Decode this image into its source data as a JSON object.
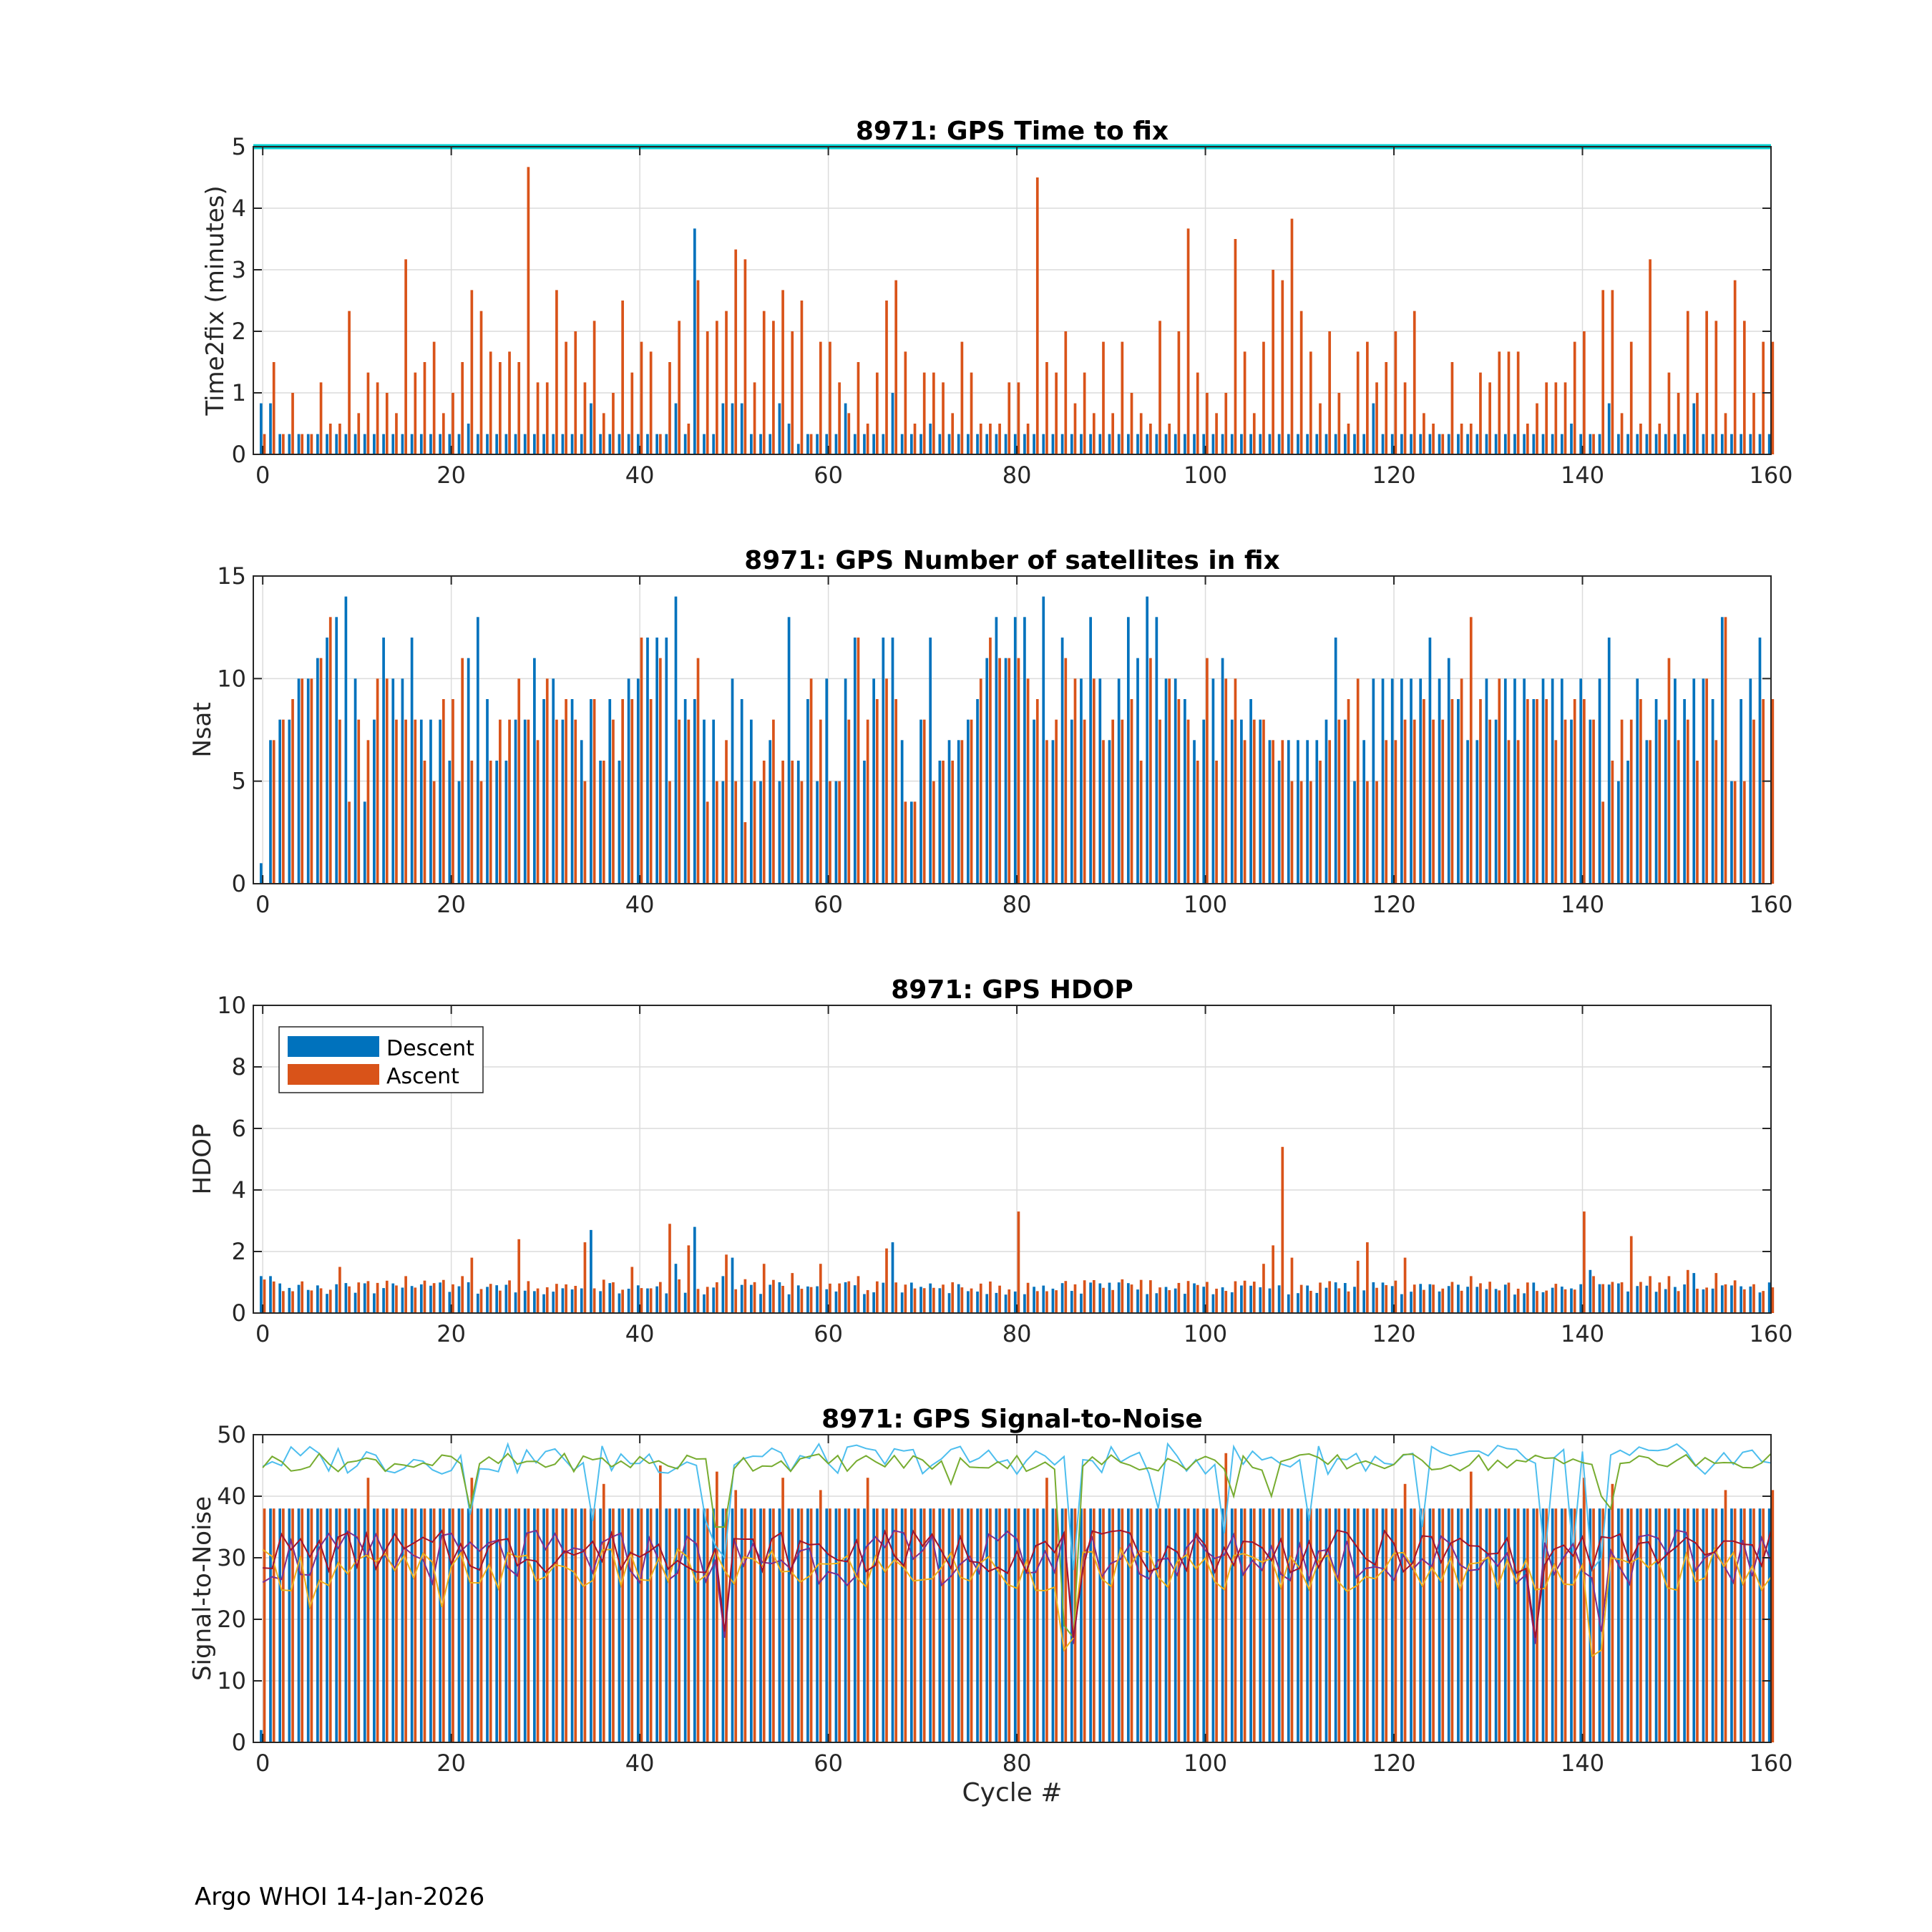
{
  "footer": "Argo WHOI 14-Jan-2026",
  "colors": {
    "descent": "#0072BD",
    "ascent": "#D95319",
    "limit": "#00D0D0",
    "snr": [
      "#4DBEEE",
      "#77AC30",
      "#7E2F8E",
      "#EDB120",
      "#A2142F"
    ]
  },
  "chart_data": [
    {
      "type": "bar",
      "title": "8971: GPS Time to fix",
      "xlabel": "",
      "ylabel": "Time2fix (minutes)",
      "xlim": [
        -1,
        160
      ],
      "ylim": [
        0,
        5
      ],
      "xticks": [
        "0",
        "20",
        "40",
        "60",
        "80",
        "100",
        "120",
        "140",
        "160"
      ],
      "yticks": [
        "0",
        "1",
        "2",
        "3",
        "4",
        "5"
      ],
      "grid": true,
      "limit_line": 5,
      "descent_base": 0.33,
      "ascent_base": 0.33,
      "descent_overrides": {
        "0": 0.83,
        "1": 0.83,
        "22": 0.5,
        "35": 0.83,
        "44": 0.83,
        "46": 3.67,
        "49": 0.83,
        "50": 0.83,
        "51": 0.83,
        "55": 0.83,
        "56": 0.5,
        "57": 0.17,
        "62": 0.83,
        "67": 1.0,
        "71": 0.5,
        "118": 0.83,
        "139": 0.5,
        "143": 0.83,
        "152": 0.83
      },
      "ascent_overrides": {
        "1": 1.5,
        "3": 1.0,
        "6": 1.17,
        "7": 0.5,
        "8": 0.5,
        "9": 2.33,
        "10": 0.67,
        "11": 1.33,
        "12": 1.17,
        "13": 1.0,
        "14": 0.67,
        "15": 3.17,
        "16": 1.33,
        "17": 1.5,
        "18": 1.83,
        "19": 0.67,
        "20": 1.0,
        "21": 1.5,
        "22": 2.67,
        "23": 2.33,
        "24": 1.67,
        "25": 1.5,
        "26": 1.67,
        "27": 1.5,
        "28": 4.67,
        "29": 1.17,
        "30": 1.17,
        "31": 2.67,
        "32": 1.83,
        "33": 2.0,
        "34": 1.17,
        "35": 2.17,
        "36": 0.67,
        "37": 1.0,
        "38": 2.5,
        "39": 1.33,
        "40": 1.83,
        "41": 1.67,
        "42": 0.33,
        "43": 1.5,
        "44": 2.17,
        "45": 0.5,
        "46": 2.83,
        "47": 2.0,
        "48": 2.17,
        "49": 2.33,
        "50": 3.33,
        "51": 3.17,
        "52": 1.17,
        "53": 2.33,
        "54": 2.17,
        "55": 2.67,
        "56": 2.0,
        "57": 2.5,
        "58": 0.33,
        "59": 1.83,
        "60": 1.83,
        "61": 1.17,
        "62": 0.67,
        "63": 1.5,
        "64": 0.5,
        "65": 1.33,
        "66": 2.5,
        "67": 2.83,
        "68": 1.67,
        "69": 0.5,
        "70": 1.33,
        "71": 1.33,
        "72": 1.17,
        "73": 0.67,
        "74": 1.83,
        "75": 1.33,
        "76": 0.5,
        "77": 0.5,
        "78": 0.5,
        "79": 1.17,
        "80": 1.17,
        "81": 0.5,
        "82": 4.5,
        "83": 1.5,
        "84": 1.33,
        "85": 2.0,
        "86": 0.83,
        "87": 1.33,
        "88": 0.67,
        "89": 1.83,
        "90": 0.67,
        "91": 1.83,
        "92": 1.0,
        "93": 0.67,
        "94": 0.5,
        "95": 2.17,
        "96": 0.5,
        "97": 2.0,
        "98": 3.67,
        "99": 1.33,
        "100": 1.0,
        "101": 0.67,
        "102": 1.0,
        "103": 3.5,
        "104": 1.67,
        "105": 0.67,
        "106": 1.83,
        "107": 3.0,
        "108": 2.83,
        "109": 3.83,
        "110": 2.33,
        "111": 1.67,
        "112": 0.83,
        "113": 2.0,
        "114": 1.0,
        "115": 0.5,
        "116": 1.67,
        "117": 1.83,
        "118": 1.17,
        "119": 1.5,
        "120": 2.0,
        "121": 1.17,
        "122": 2.33,
        "123": 0.67,
        "124": 0.5,
        "125": 0.33,
        "126": 1.5,
        "127": 0.5,
        "128": 0.5,
        "129": 1.33,
        "130": 1.17,
        "131": 1.67,
        "132": 1.67,
        "133": 1.67,
        "134": 0.5,
        "135": 0.83,
        "136": 1.17,
        "137": 1.17,
        "138": 1.17,
        "139": 1.83,
        "140": 2.0,
        "141": 0.33,
        "142": 2.67,
        "143": 2.67,
        "144": 0.67,
        "145": 1.83,
        "146": 0.5,
        "147": 3.17,
        "148": 0.5,
        "149": 1.33,
        "150": 1.0,
        "151": 2.33,
        "152": 1.0,
        "153": 2.33,
        "154": 2.17,
        "155": 0.67,
        "156": 2.83,
        "157": 2.17,
        "158": 1.0,
        "159": 1.83,
        "160": 1.83
      }
    },
    {
      "type": "bar",
      "title": "8971: GPS Number of satellites in fix",
      "xlabel": "",
      "ylabel": "Nsat",
      "xlim": [
        -1,
        160
      ],
      "ylim": [
        0,
        15
      ],
      "xticks": [
        "0",
        "20",
        "40",
        "60",
        "80",
        "100",
        "120",
        "140",
        "160"
      ],
      "yticks": [
        "0",
        "5",
        "10",
        "15"
      ],
      "grid": true,
      "descent": [
        1,
        7,
        8,
        8,
        10,
        10,
        11,
        12,
        13,
        14,
        10,
        4,
        8,
        12,
        10,
        10,
        12,
        8,
        8,
        8,
        6,
        5,
        11,
        13,
        9,
        6,
        6,
        8,
        8,
        11,
        9,
        10,
        8,
        9,
        7,
        9,
        6,
        9,
        6,
        10,
        10,
        12,
        12,
        12,
        14,
        9,
        9,
        8,
        8,
        5,
        10,
        9,
        8,
        5,
        7,
        5,
        13,
        6,
        9,
        5,
        10,
        5,
        10,
        12,
        6,
        10,
        12,
        12,
        7,
        4,
        8,
        12,
        6,
        7,
        7,
        8,
        9,
        11,
        13,
        11,
        13,
        13,
        8,
        14,
        7,
        12,
        8,
        10,
        13,
        10,
        7,
        10,
        13,
        11,
        14,
        13,
        10,
        10,
        9,
        7,
        8,
        10,
        11,
        8,
        8,
        9,
        8,
        7,
        6,
        7,
        7,
        7,
        7,
        8,
        12,
        8,
        5,
        7,
        10,
        10,
        10,
        10,
        10,
        10,
        12,
        10,
        11,
        9,
        7,
        7,
        10,
        8,
        10,
        10,
        10,
        9,
        10,
        10,
        10,
        8,
        10,
        8,
        10,
        12,
        5,
        6,
        10,
        7,
        9,
        8,
        10,
        9,
        10,
        10,
        9,
        13,
        5,
        9,
        10,
        12
      ],
      "ascent": [
        0,
        7,
        8,
        9,
        10,
        10,
        11,
        13,
        8,
        4,
        8,
        7,
        10,
        10,
        8,
        8,
        8,
        6,
        5,
        9,
        9,
        11,
        6,
        5,
        6,
        8,
        8,
        10,
        8,
        7,
        10,
        8,
        9,
        8,
        5,
        9,
        6,
        8,
        9,
        9,
        12,
        9,
        11,
        5,
        8,
        8,
        11,
        4,
        5,
        7,
        5,
        3,
        5,
        6,
        8,
        6,
        6,
        5,
        10,
        8,
        5,
        5,
        8,
        12,
        8,
        9,
        10,
        9,
        4,
        4,
        8,
        5,
        6,
        6,
        7,
        8,
        10,
        12,
        11,
        11,
        11,
        10,
        9,
        7,
        8,
        11,
        10,
        8,
        10,
        7,
        8,
        8,
        9,
        6,
        11,
        8,
        10,
        9,
        8,
        6,
        11,
        6,
        10,
        10,
        7,
        8,
        8,
        7,
        7,
        5,
        5,
        5,
        6,
        7,
        8,
        9,
        10,
        5,
        5,
        7,
        7,
        8,
        8,
        9,
        8,
        8,
        9,
        10,
        13,
        9,
        8,
        10,
        7,
        7,
        9,
        9,
        9,
        7,
        8,
        9,
        9,
        8,
        4,
        6,
        8,
        8,
        9,
        7,
        8,
        11,
        7,
        8,
        6,
        10,
        7,
        13,
        5,
        5,
        8,
        9,
        9
      ]
    },
    {
      "type": "bar",
      "title": "8971: GPS HDOP",
      "xlabel": "",
      "ylabel": "HDOP",
      "xlim": [
        -1,
        160
      ],
      "ylim": [
        0,
        10
      ],
      "xticks": [
        "0",
        "20",
        "40",
        "60",
        "80",
        "100",
        "120",
        "140",
        "160"
      ],
      "yticks": [
        "0",
        "2",
        "4",
        "6",
        "8",
        "10"
      ],
      "grid": true,
      "legend": {
        "position": "top-left",
        "entries": [
          "Descent",
          "Ascent"
        ]
      },
      "descent_base": 0.8,
      "ascent_base": 0.9,
      "descent_overrides": {
        "0": 1.2,
        "1": 1.2,
        "22": 1.0,
        "35": 2.7,
        "40": 0.9,
        "44": 1.6,
        "46": 2.8,
        "49": 1.2,
        "50": 1.8,
        "55": 1.0,
        "61": 0.7,
        "62": 1.0,
        "67": 2.3,
        "80": 0.7,
        "107": 0.8,
        "108": 0.9,
        "118": 1.0,
        "139": 0.8,
        "141": 1.4,
        "152": 1.3
      },
      "ascent_overrides": {
        "8": 1.5,
        "15": 1.2,
        "21": 1.2,
        "22": 1.8,
        "27": 2.4,
        "34": 2.3,
        "37": 1.0,
        "39": 1.5,
        "43": 2.9,
        "45": 2.2,
        "48": 1.0,
        "49": 1.9,
        "51": 1.1,
        "53": 1.6,
        "56": 1.3,
        "59": 1.6,
        "63": 1.2,
        "66": 2.1,
        "73": 1.0,
        "80": 3.3,
        "106": 1.6,
        "107": 2.2,
        "108": 5.4,
        "109": 1.8,
        "116": 1.7,
        "117": 2.3,
        "121": 1.8,
        "128": 1.2,
        "140": 3.3,
        "141": 1.2,
        "145": 2.5,
        "147": 1.2,
        "149": 1.2,
        "151": 1.4,
        "154": 1.3
      },
      "noise": 0.2
    },
    {
      "type": "bar+line",
      "title": "8971: GPS Signal-to-Noise",
      "xlabel": "Cycle #",
      "ylabel": "Signal-to-Noise",
      "xlim": [
        -1,
        160
      ],
      "ylim": [
        0,
        50
      ],
      "xticks": [
        "0",
        "20",
        "40",
        "60",
        "80",
        "100",
        "120",
        "140",
        "160"
      ],
      "yticks": [
        "0",
        "10",
        "20",
        "30",
        "40",
        "50"
      ],
      "grid": true,
      "descent_base": 38,
      "ascent_base": 38,
      "descent_overrides": {
        "0": 2
      },
      "ascent_overrides": {
        "11": 43,
        "22": 43,
        "36": 42,
        "42": 45,
        "48": 44,
        "50": 41,
        "55": 43,
        "59": 41,
        "64": 43,
        "83": 43,
        "102": 47,
        "121": 42,
        "128": 44,
        "140": 43,
        "143": 42,
        "155": 41,
        "160": 41
      },
      "line_series": [
        {
          "color_index": 0,
          "base": 46,
          "amp": 2.5,
          "dips": {
            "22": 37,
            "35": 36,
            "47": 36,
            "48": 32,
            "49": 30,
            "86": 28,
            "95": 38,
            "102": 34,
            "111": 36,
            "123": 35,
            "136": 30,
            "139": 31,
            "141": 28,
            "142": 30
          }
        },
        {
          "color_index": 1,
          "base": 45.5,
          "amp": 1.5,
          "dips": {
            "22": 38,
            "48": 35,
            "49": 35,
            "73": 42,
            "85": 19,
            "86": 17,
            "103": 40,
            "107": 40,
            "142": 40,
            "143": 38
          }
        },
        {
          "color_index": 2,
          "base": 30,
          "amp": 4.5,
          "dips": {
            "49": 17,
            "86": 16,
            "135": 16,
            "142": 18
          }
        },
        {
          "color_index": 3,
          "base": 28,
          "amp": 3.5,
          "dips": {
            "5": 22,
            "19": 22,
            "85": 15,
            "86": 17,
            "141": 14,
            "142": 15
          }
        },
        {
          "color_index": 4,
          "base": 31,
          "amp": 3.5,
          "dips": {
            "49": 18,
            "86": 17,
            "135": 17
          }
        }
      ]
    }
  ]
}
